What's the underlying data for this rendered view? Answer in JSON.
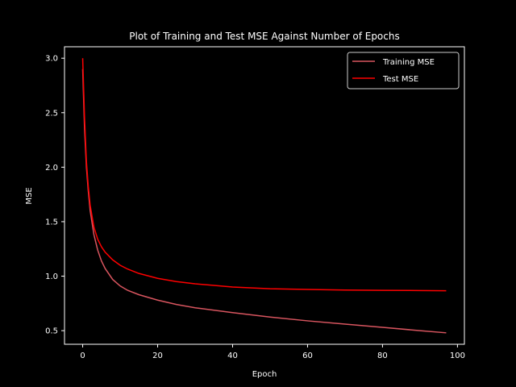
{
  "chart_data": {
    "type": "line",
    "title": "Plot of Training and Test MSE Against Number of Epochs",
    "xlabel": "Epoch",
    "ylabel": "MSE",
    "xlim": [
      -4.85,
      101.85
    ],
    "ylim": [
      0.375,
      3.105
    ],
    "xticks": [
      0,
      20,
      40,
      60,
      80,
      100
    ],
    "yticks": [
      0.5,
      1.0,
      1.5,
      2.0,
      2.5,
      3.0
    ],
    "xtick_labels": [
      "0",
      "20",
      "40",
      "60",
      "80",
      "100"
    ],
    "ytick_labels": [
      "0.5",
      "1.0",
      "1.5",
      "2.0",
      "2.5",
      "3.0"
    ],
    "grid": false,
    "legend_position": "top-right",
    "background": "#000000",
    "foreground": "#ffffff",
    "series": [
      {
        "name": "Training MSE",
        "color": "#d8555f",
        "x": [
          0,
          0.5,
          1,
          1.5,
          2,
          3,
          4,
          5,
          6,
          8,
          10,
          12,
          15,
          20,
          25,
          30,
          40,
          50,
          60,
          70,
          80,
          90,
          97
        ],
        "y": [
          2.9,
          2.35,
          2.0,
          1.78,
          1.6,
          1.38,
          1.24,
          1.14,
          1.07,
          0.97,
          0.91,
          0.87,
          0.83,
          0.78,
          0.74,
          0.71,
          0.665,
          0.625,
          0.59,
          0.56,
          0.53,
          0.5,
          0.48
        ]
      },
      {
        "name": "Test MSE",
        "color": "#ff0000",
        "x": [
          0,
          0.5,
          1,
          1.5,
          2,
          3,
          4,
          5,
          6,
          8,
          10,
          12,
          15,
          20,
          25,
          30,
          40,
          50,
          60,
          70,
          80,
          90,
          97
        ],
        "y": [
          3.0,
          2.45,
          2.05,
          1.82,
          1.65,
          1.45,
          1.34,
          1.27,
          1.22,
          1.15,
          1.1,
          1.065,
          1.025,
          0.98,
          0.95,
          0.93,
          0.9,
          0.885,
          0.878,
          0.873,
          0.87,
          0.868,
          0.866
        ]
      }
    ]
  }
}
